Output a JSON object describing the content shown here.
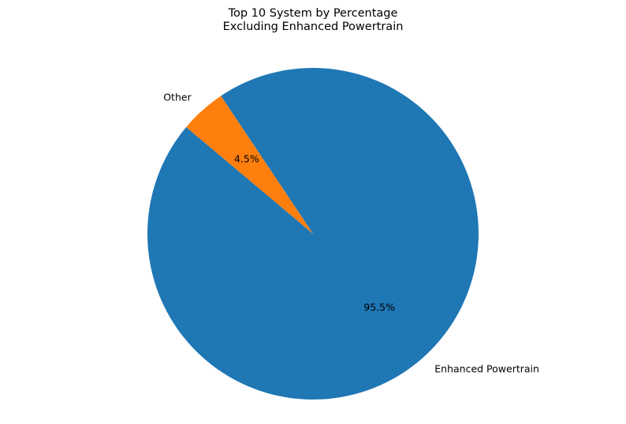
{
  "chart_data": {
    "type": "pie",
    "title": "Top 10 System by Percentage\nExcluding Enhanced Powertrain",
    "title_lines": [
      "Top 10 System by Percentage",
      "Excluding Enhanced Powertrain"
    ],
    "slices": [
      {
        "label": "Enhanced Powertrain",
        "value": 95.5,
        "pct_label": "95.5%",
        "color": "#1f77b4"
      },
      {
        "label": "Other",
        "value": 4.5,
        "pct_label": "4.5%",
        "color": "#ff7f0e"
      }
    ],
    "start_angle": 140,
    "direction": "counterclockwise",
    "legend": "none"
  }
}
